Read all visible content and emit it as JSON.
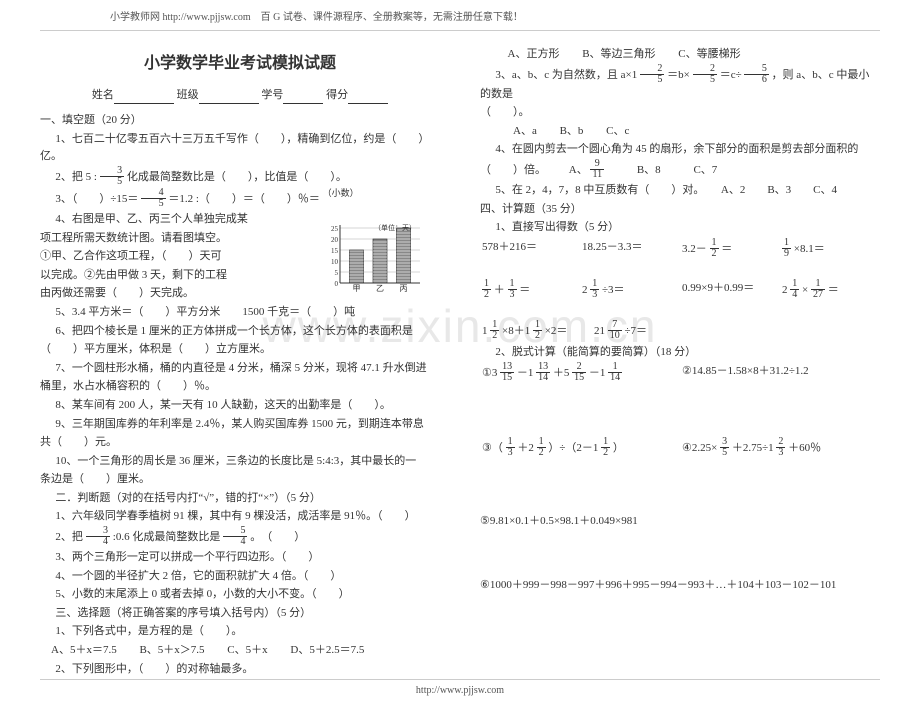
{
  "header": {
    "text": "小学教师网 http://www.pjjsw.com　百 G 试卷、课件源程序、全册教案等，无需注册任意下载！"
  },
  "footer": {
    "text": "http://www.pjjsw.com"
  },
  "watermark": "www.zixin.com.cn",
  "title": "小学数学毕业考试模拟试题",
  "info": {
    "name": "姓名",
    "class": "班级",
    "sid": "学号",
    "score": "得分"
  },
  "left": {
    "s1_head": "一、填空题（20 分）",
    "q1": "1、七百二十亿零五百六十三万五千写作（　　），精确到亿位，约是（　　）亿。",
    "q2a": "2、把 5 :",
    "q2b": "化成最简整数比是（　　），比值是（　　）。",
    "q3a": "3、（　　）÷15＝",
    "q3b": "＝1.2 :（　　）＝（　　）％＝",
    "q3c": "（小数）",
    "q4p1": "4、右图是甲、乙、丙三个人单独完成某",
    "q4p2": "项工程所需天数统计图。请看图填空。",
    "q4p3": "①甲、乙合作这项工程，（　　）天可",
    "q4p4": "以完成。②先由甲做 3 天，剩下的工程",
    "q4p5": "由丙做还需要（　　）天完成。",
    "q5": "5、3.4 平方米＝（　　）平方分米　　1500 千克＝（　　）吨",
    "q6a": "6、把四个棱长是 1 厘米的正方体拼成一个长方体，这个长方体的表面积是",
    "q6b": "（　　）平方厘米，体积是（　　）立方厘米。",
    "q7a": "7、一个圆柱形水桶，桶的内直径是 4 分米，桶深 5 分米，现将 47.1 升水倒进",
    "q7b": "桶里，水占水桶容积的（　　）％。",
    "q8": "8、某车间有 200 人，某一天有 10 人缺勤，这天的出勤率是（　　）。",
    "q9a": "9、三年期国库券的年利率是 2.4％，某人购买国库券 1500 元，到期连本带息",
    "q9b": "共（　　）元。",
    "q10a": "10、一个三角形的周长是 36 厘米，三条边的长度比是 5:4:3，其中最长的一",
    "q10b": "条边是（　　）厘米。",
    "s2_head": "二．判断题（对的在括号内打“√”，错的打“×”）（5 分）",
    "j1": "1、六年级同学春季植树 91 棵，其中有 9 棵没活，成活率是 91％。（　　）",
    "j2a": "2、把",
    "j2b": ":0.6 化成最简整数比是",
    "j2c": "。　（　　）",
    "j3": "3、两个三角形一定可以拼成一个平行四边形。（　　）",
    "j4": "4、一个圆的半径扩大 2 倍，它的面积就扩大 4 倍。（　　）",
    "j5": "5、小数的末尾添上 0 或者去掉 0，小数的大小不变。（　　）",
    "s3_head": "三、选择题（将正确答案的序号填入括号内）（5 分）",
    "c1": "1、下列各式中，是方程的是（　　）。",
    "c1o": {
      "a": "A、5＋x＝7.5",
      "b": "B、5＋x＞7.5",
      "c": "C、5＋x",
      "d": "D、5＋2.5＝7.5"
    },
    "c2": "2、下列图形中，（　　）的对称轴最多。"
  },
  "right": {
    "c2o": {
      "a": "A、正方形",
      "b": "B、等边三角形",
      "c": "C、等腰梯形"
    },
    "c3a": "3、a、b、c 为自然数，且 a×1",
    "c3b": "＝b×",
    "c3c": "＝c÷",
    "c3d": "，则 a、b、c 中最小的数是",
    "c3e": "（　　）。",
    "c3o": {
      "a": "A、a",
      "b": "B、b",
      "c": "C、c"
    },
    "c4a": "4、在圆内剪去一个圆心角为 45 的扇形，余下部分的面积是剪去部分面积的",
    "c4b": "（　　）倍。",
    "c4o": {
      "a": "A、",
      "b": "B、8",
      "c": "C、7"
    },
    "c5": "5、在 2，4，7，8 中互质数有（　　）对。　　A、2　　B、3　　C、4",
    "s4_head": "四、计算题（35 分）",
    "s4_1": "1、直接写出得数（5 分）",
    "r1": {
      "a": "578＋216＝",
      "b": "18.25－3.3＝",
      "c": "3.2－",
      "d": "＝",
      "e": "×8.1＝"
    },
    "r2": {
      "a": "＋",
      "b": "＝",
      "c": "2",
      "d": "÷3＝",
      "e": "0.99×9＋0.99＝",
      "f": "2",
      "g": "×",
      "h": "＝"
    },
    "r3": {
      "a": "1",
      "b": "×8＋1",
      "c": "×2＝",
      "d": "21",
      "e": "÷7＝"
    },
    "s4_2": "2、脱式计算（能简算的要简算）（18 分）",
    "e1a": "①3",
    "e1b": "－1",
    "e1c": "＋5",
    "e1d": "－1",
    "e2": "②14.85－1.58×8＋31.2÷1.2",
    "e3a": "③（",
    "e3b": "＋2",
    "e3c": "）÷（2－1",
    "e3d": "）",
    "e4a": "④2.25×",
    "e4b": "＋2.75÷1",
    "e4c": "＋60％",
    "e5": "⑤9.81×0.1＋0.5×98.1＋0.049×981",
    "e6": "⑥1000＋999－998－997＋996＋995－994－993＋…＋104＋103－102－101"
  },
  "chart": {
    "unit": "（单位：天）",
    "yticks": [
      "0",
      "5",
      "10",
      "15",
      "20",
      "25"
    ],
    "xlabels": [
      "甲",
      "乙",
      "丙"
    ],
    "values": [
      15,
      20,
      25
    ],
    "ymax": 25,
    "bar_color": "#888888",
    "bar_stroke": "#333333",
    "grid_color": "#aaaaaa",
    "axis_color": "#333333",
    "bg": "#ffffff"
  }
}
